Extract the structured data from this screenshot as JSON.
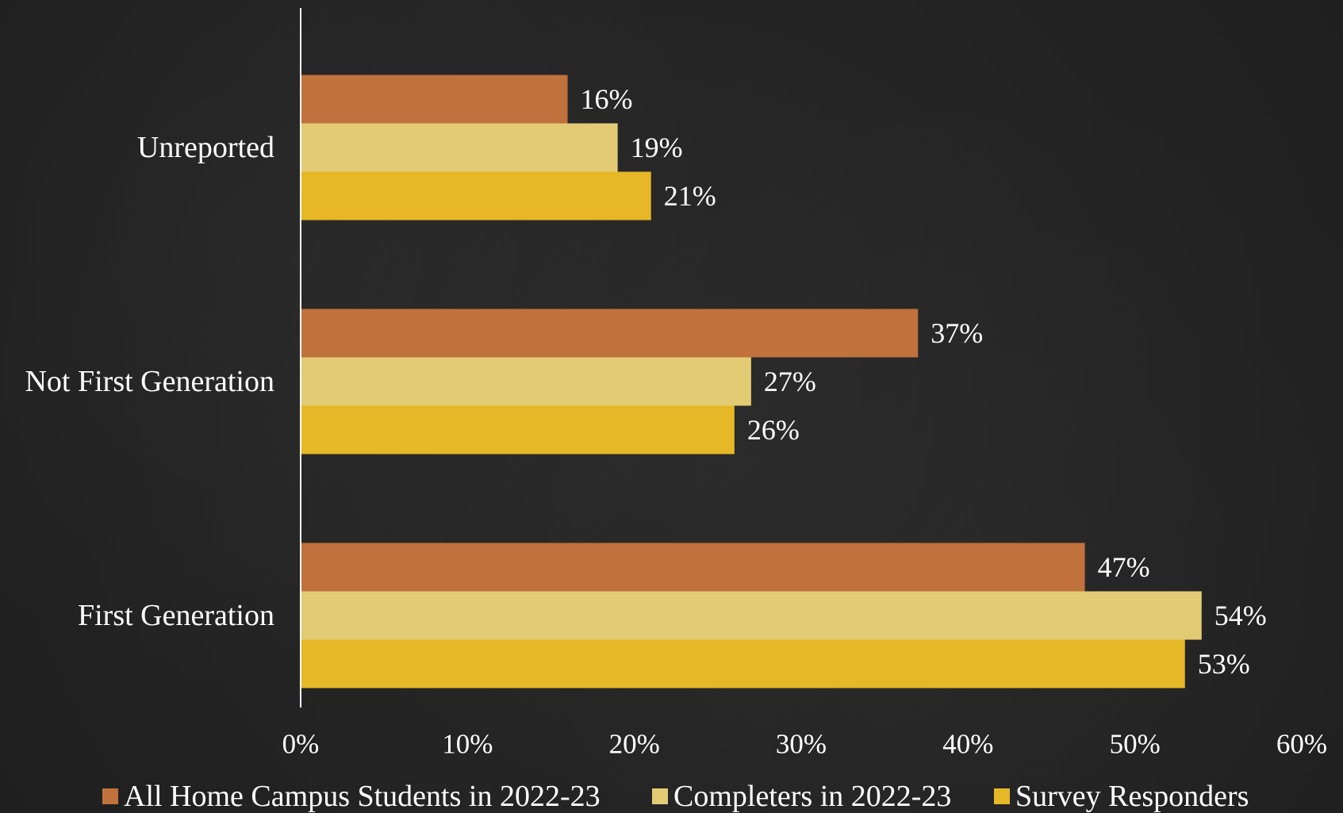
{
  "chart_data": {
    "type": "bar",
    "orientation": "horizontal",
    "categories": [
      "Unreported",
      "Not First Generation",
      "First Generation"
    ],
    "series": [
      {
        "name": "All Home Campus Students in 2022-23",
        "values": [
          16,
          37,
          47
        ],
        "labels": [
          "16%",
          "37%",
          "47%"
        ],
        "color": "#C0713C"
      },
      {
        "name": "Completers in 2022-23",
        "values": [
          19,
          27,
          54
        ],
        "labels": [
          "19%",
          "27%",
          "54%"
        ],
        "color": "#E2CB74"
      },
      {
        "name": "Survey Responders",
        "values": [
          21,
          26,
          53
        ],
        "labels": [
          "21%",
          "26%",
          "53%"
        ],
        "color": "#E6B726"
      }
    ],
    "xlim": [
      0,
      60
    ],
    "xticks": [
      {
        "value": 0,
        "label": "0%"
      },
      {
        "value": 10,
        "label": "10%"
      },
      {
        "value": 20,
        "label": "20%"
      },
      {
        "value": 30,
        "label": "30%"
      },
      {
        "value": 40,
        "label": "40%"
      },
      {
        "value": 50,
        "label": "50%"
      },
      {
        "value": 60,
        "label": "60%"
      }
    ],
    "title": "",
    "xlabel": "",
    "ylabel": "",
    "grid": false,
    "legend": "bottom",
    "axis_color": "#FFFFFF",
    "text_color": "#FFFFFF"
  }
}
